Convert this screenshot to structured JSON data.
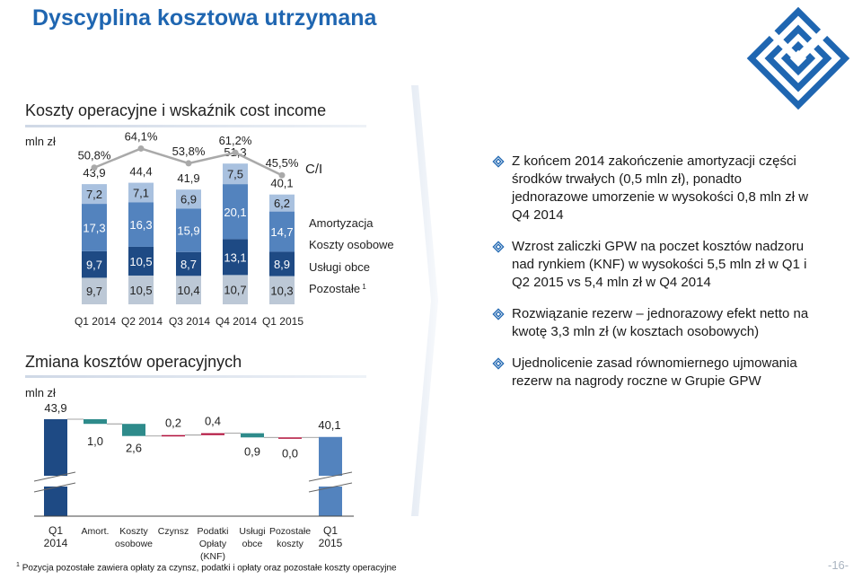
{
  "title": "Dyscyplina kosztowa utrzymana",
  "section1_title": "Koszty operacyjne i wskaźnik cost income",
  "section2_title": "Zmiana kosztów operacyjnych",
  "colors": {
    "title": "#1f66b1",
    "pozostale": "#bcc8d6",
    "uslugi_obce": "#1e4a84",
    "osobowe": "#5383be",
    "amortyzacja": "#a9c1df",
    "ci_line": "#a9a9a9",
    "wf_total": "#1e4a84",
    "wf_total_end": "#5383be",
    "wf_decrease": "#2e8b8b",
    "wf_increase": "#b0103a"
  },
  "chart_data": [
    {
      "type": "bar",
      "subtype": "stacked with line",
      "unit_label": "mln zł",
      "categories": [
        "Q1 2014",
        "Q2 2014",
        "Q3 2014",
        "Q4 2014",
        "Q1 2015"
      ],
      "series": [
        {
          "name": "Pozostałe",
          "name_sup": "1",
          "values": [
            9.7,
            10.5,
            10.4,
            10.7,
            10.3
          ]
        },
        {
          "name": "Usługi obce",
          "values": [
            9.7,
            10.5,
            8.7,
            13.1,
            8.9
          ]
        },
        {
          "name": "Koszty osobowe",
          "values": [
            17.3,
            16.3,
            15.9,
            20.1,
            14.7
          ]
        },
        {
          "name": "Amortyzacja",
          "values": [
            7.2,
            7.1,
            6.9,
            7.5,
            6.2
          ]
        }
      ],
      "value_labels": {
        "Pozostałe": [
          "9,7",
          "10,5",
          "10,4",
          "10,7",
          "10,3"
        ],
        "Usługi obce": [
          "9,7",
          "10,5",
          "8,7",
          "13,1",
          "8,9"
        ],
        "Koszty osobowe": [
          "17,3",
          "16,3",
          "15,9",
          "20,1",
          "14,7"
        ],
        "Amortyzacja": [
          "7,2",
          "7,1",
          "6,9",
          "7,5",
          "6,2"
        ]
      },
      "totals": [
        43.9,
        44.4,
        41.9,
        51.3,
        40.1
      ],
      "total_labels": [
        "43,9",
        "44,4",
        "41,9",
        "51,3",
        "40,1"
      ],
      "line": {
        "name": "C/I",
        "values": [
          50.8,
          64.1,
          53.8,
          61.2,
          45.5
        ],
        "labels": [
          "50,8%",
          "64,1%",
          "53,8%",
          "61,2%",
          "45,5%"
        ]
      }
    },
    {
      "type": "bar",
      "subtype": "waterfall",
      "unit_label": "mln zł",
      "categories": [
        "Q1 2014",
        "Amort.",
        "Koszty osobowe",
        "Czynsz",
        "Podatki Opłaty (KNF)",
        "Usługi obce",
        "Pozostałe koszty",
        "Q1 2015"
      ],
      "category_lines": [
        [
          "Q1",
          "2014"
        ],
        [
          "Amort."
        ],
        [
          "Koszty",
          "osobowe"
        ],
        [
          "Czynsz"
        ],
        [
          "Podatki",
          "Opłaty",
          "(KNF)"
        ],
        [
          "Usługi",
          "obce"
        ],
        [
          "Pozostałe",
          "koszty"
        ],
        [
          "Q1",
          "2015"
        ]
      ],
      "values": [
        43.9,
        -1.0,
        -2.6,
        0.2,
        0.4,
        -0.9,
        0.0,
        40.1
      ],
      "kinds": [
        "total",
        "delta",
        "delta",
        "delta",
        "delta",
        "delta",
        "delta",
        "total"
      ],
      "labels": [
        "43,9",
        "1,0",
        "2,6",
        "0,2",
        "0,4",
        "0,9",
        "0,0",
        "40,1"
      ],
      "axis_break": true
    }
  ],
  "bullets": [
    "Z końcem 2014 zakończenie amortyzacji części środków trwałych (0,5 mln zł), ponadto jednorazowe umorzenie w wysokości 0,8 mln zł w Q4 2014",
    "Wzrost zaliczki GPW na poczet kosztów nadzoru nad rynkiem (KNF) w wysokości 5,5 mln zł w Q1 i Q2 2015 vs 5,4 mln zł w Q4 2014",
    "Rozwiązanie rezerw – jednorazowy efekt netto na kwotę 3,3 mln zł (w kosztach osobowych)",
    "Ujednolicenie zasad równomiernego ujmowania rezerw na nagrody roczne w Grupie GPW"
  ],
  "footnote": {
    "marker": "1",
    "text": "Pozycja pozostałe zawiera opłaty za czynsz, podatki i opłaty oraz pozostałe koszty operacyjne"
  },
  "page_number": "-16-"
}
